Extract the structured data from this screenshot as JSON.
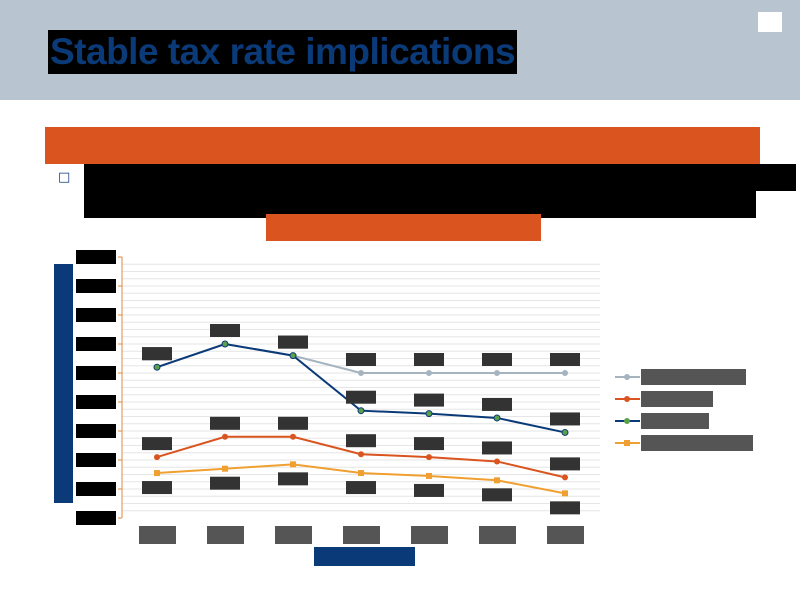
{
  "header": {
    "title": "Stable tax rate implications",
    "subtitle_band": "",
    "bullet_icon": "square-bullet-icon",
    "bullet_text": ""
  },
  "colors": {
    "header_bg": "#b8c4d0",
    "title_text": "#0b3a78",
    "accent_orange": "#d9541e",
    "axis_blue": "#0b3a78",
    "series_gray": "#a6b4c0",
    "series_orange": "#d9541e",
    "series_navy": "#0b3a78",
    "series_gold": "#f0a030"
  },
  "chart_data": {
    "type": "line",
    "title": "",
    "xlabel": "",
    "ylabel": "",
    "categories": [
      "",
      "",
      "",
      "",
      "",
      "",
      ""
    ],
    "ylim": [
      0,
      9
    ],
    "grid": true,
    "legend_position": "right",
    "series": [
      {
        "name": "",
        "color": "#a6b4c0",
        "marker": "circle",
        "values": [
          5.2,
          6.0,
          5.6,
          5.0,
          5.0,
          5.0,
          5.0
        ]
      },
      {
        "name": "",
        "color": "#d9541e",
        "marker": "circle",
        "values": [
          2.1,
          2.8,
          2.8,
          2.2,
          2.1,
          1.95,
          1.4
        ]
      },
      {
        "name": "",
        "color": "#0b3a78",
        "marker": "circle",
        "values": [
          5.2,
          6.0,
          5.6,
          3.7,
          3.6,
          3.45,
          2.95
        ]
      },
      {
        "name": "",
        "color": "#f0a030",
        "marker": "square",
        "values": [
          1.55,
          1.7,
          1.85,
          1.55,
          1.45,
          1.3,
          0.85
        ]
      }
    ]
  }
}
